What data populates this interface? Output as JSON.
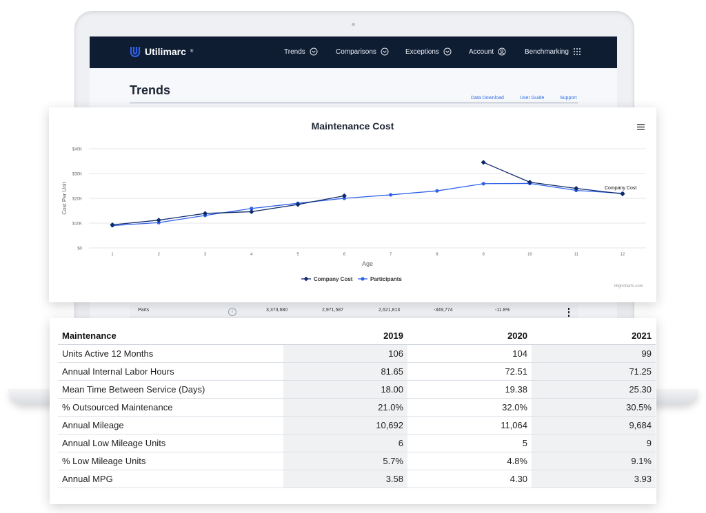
{
  "app": {
    "brand": "Utilimarc",
    "brand_sup": "®"
  },
  "nav": {
    "items": [
      {
        "label": "Trends",
        "icon": "chevron-down-circle-icon"
      },
      {
        "label": "Comparisons",
        "icon": "chevron-down-circle-icon"
      },
      {
        "label": "Exceptions",
        "icon": "chevron-down-circle-icon"
      },
      {
        "label": "Account",
        "icon": "user-circle-icon"
      },
      {
        "label": "Benchmarking",
        "icon": "grid-dots-icon"
      }
    ]
  },
  "page": {
    "title": "Trends",
    "links": [
      "Data Download",
      "User Guide",
      "Support"
    ]
  },
  "background_row": {
    "label": "Parts",
    "cells": [
      "3,373,680",
      "2,971,587",
      "2,621,813",
      "-349,774",
      "-11.8%"
    ]
  },
  "chart_data": {
    "type": "line",
    "title": "Maintenance Cost",
    "xlabel": "Age",
    "ylabel": "Cost Per Unit",
    "x": [
      1,
      2,
      3,
      4,
      5,
      6,
      7,
      8,
      9,
      10,
      11,
      12
    ],
    "y_ticks": [
      "$0",
      "$10K",
      "$20K",
      "$30K",
      "$40K"
    ],
    "ylim": [
      0,
      40000
    ],
    "grid": true,
    "legend": "bottom",
    "series": [
      {
        "name": "Company Cost",
        "color": "#0f2a6b",
        "marker": "diamond",
        "segments": [
          {
            "x": [
              1,
              2,
              3,
              4,
              5,
              6
            ],
            "y": [
              9300,
              11200,
              13900,
              14600,
              17500,
              21000
            ]
          },
          {
            "x": [
              9,
              10,
              11,
              12
            ],
            "y": [
              34500,
              26500,
              24000,
              21800
            ]
          }
        ]
      },
      {
        "name": "Participants",
        "color": "#2f62e8",
        "marker": "circle",
        "segments": [
          {
            "x": [
              1,
              2,
              3,
              4,
              5,
              6,
              7,
              8,
              9,
              10,
              11,
              12
            ],
            "y": [
              9000,
              10200,
              13100,
              15900,
              18000,
              20000,
              21400,
              23000,
              25900,
              26000,
              23200,
              22000
            ]
          }
        ]
      }
    ],
    "annotation": "Company Cost",
    "credit": "Highcharts.com",
    "menu_icon": "hamburger-menu-icon"
  },
  "table": {
    "headers": [
      "Maintenance",
      "2019",
      "2020",
      "2021"
    ],
    "rows": [
      [
        "Units Active 12 Months",
        "106",
        "104",
        "99"
      ],
      [
        "Annual Internal Labor Hours",
        "81.65",
        "72.51",
        "71.25"
      ],
      [
        "Mean Time Between Service (Days)",
        "18.00",
        "19.38",
        "25.30"
      ],
      [
        "% Outsourced Maintenance",
        "21.0%",
        "32.0%",
        "30.5%"
      ],
      [
        "Annual Mileage",
        "10,692",
        "11,064",
        "9,684"
      ],
      [
        "Annual Low Mileage Units",
        "6",
        "5",
        "9"
      ],
      [
        "% Low Mileage Units",
        "5.7%",
        "4.8%",
        "9.1%"
      ],
      [
        "Annual MPG",
        "3.58",
        "4.30",
        "3.93"
      ]
    ]
  }
}
